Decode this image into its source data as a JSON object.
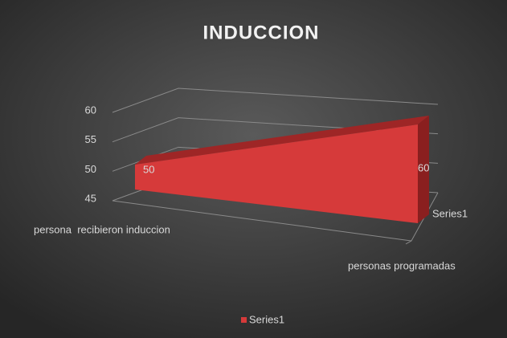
{
  "chart_data": {
    "type": "area3d",
    "title": "INDUCCION",
    "categories": [
      "persona  recibieron induccion",
      "personas programadas"
    ],
    "depth_label": "Series1",
    "series": [
      {
        "name": "Series1",
        "color": "#d63a3a",
        "values": [
          50,
          60
        ]
      }
    ],
    "ylim": [
      45,
      60
    ],
    "yticks": [
      45,
      50,
      55,
      60
    ],
    "grid": true,
    "legend": "bottom"
  }
}
